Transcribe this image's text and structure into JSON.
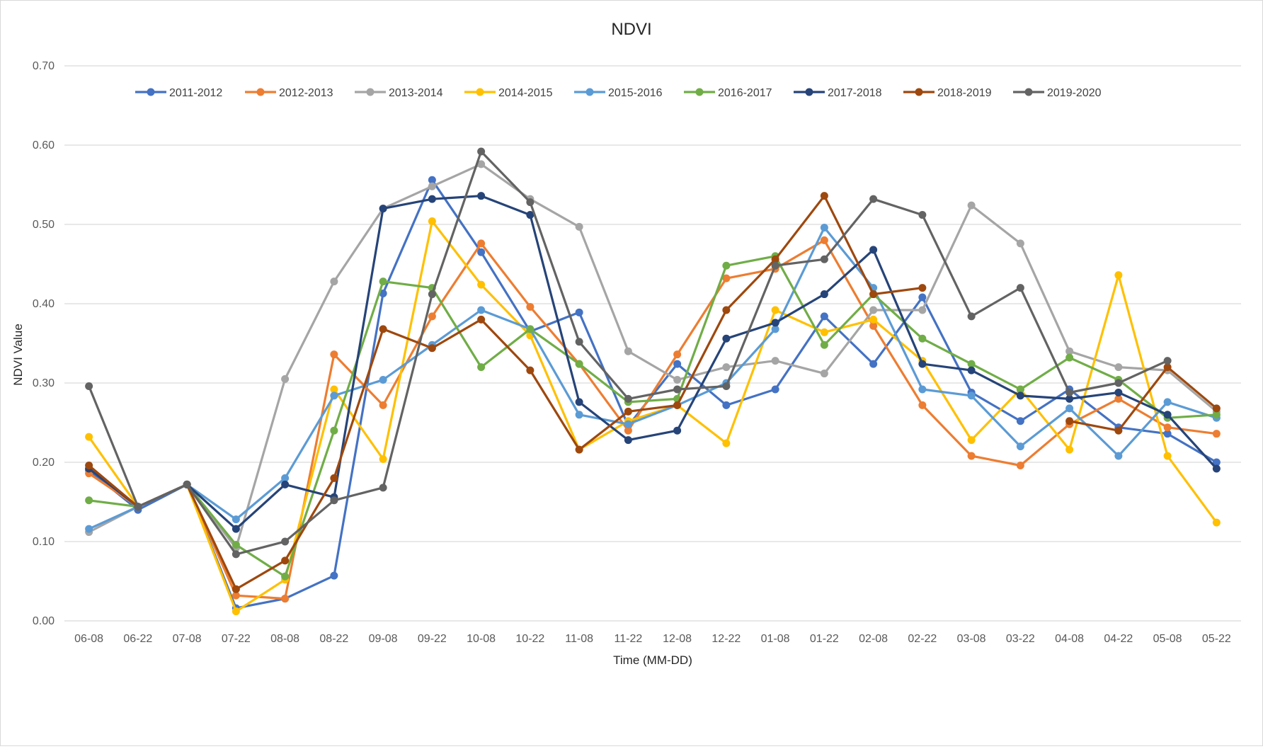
{
  "chart_data": {
    "type": "line",
    "title": "NDVI",
    "xlabel": "Time (MM-DD)",
    "ylabel": "NDVI Value",
    "ylim": [
      0,
      0.7
    ],
    "yticks": [
      "0.00",
      "0.10",
      "0.20",
      "0.30",
      "0.40",
      "0.50",
      "0.60",
      "0.70"
    ],
    "grid": true,
    "legend_position": "top",
    "categories": [
      "06-08",
      "06-22",
      "07-08",
      "07-22",
      "08-08",
      "08-22",
      "09-08",
      "09-22",
      "10-08",
      "10-22",
      "11-08",
      "11-22",
      "12-08",
      "12-22",
      "01-08",
      "01-22",
      "02-08",
      "02-22",
      "03-08",
      "03-22",
      "04-08",
      "04-22",
      "05-08",
      "05-22"
    ],
    "series": [
      {
        "name": "2011-2012",
        "color": "#4472C4",
        "values": [
          0.19,
          0.14,
          0.172,
          0.016,
          0.028,
          0.057,
          0.413,
          0.556,
          0.465,
          0.365,
          0.389,
          0.246,
          0.324,
          0.272,
          0.292,
          0.384,
          0.324,
          0.408,
          0.288,
          0.252,
          0.292,
          0.244,
          0.236,
          0.2
        ]
      },
      {
        "name": "2012-2013",
        "color": "#ED7D31",
        "values": [
          0.186,
          0.144,
          0.172,
          0.032,
          0.028,
          0.336,
          0.272,
          0.384,
          0.476,
          0.396,
          0.324,
          0.24,
          0.336,
          0.432,
          0.444,
          0.48,
          0.372,
          0.272,
          0.208,
          0.196,
          0.248,
          0.28,
          0.244,
          0.236
        ]
      },
      {
        "name": "2013-2014",
        "color": "#A5A5A5",
        "values": [
          0.112,
          0.144,
          0.172,
          0.092,
          0.305,
          0.428,
          0.52,
          0.548,
          0.576,
          0.532,
          0.497,
          0.34,
          0.304,
          0.32,
          0.328,
          0.312,
          0.392,
          0.392,
          0.524,
          0.476,
          0.34,
          0.32,
          0.316,
          0.264
        ]
      },
      {
        "name": "2014-2015",
        "color": "#FFC000",
        "values": [
          0.232,
          0.144,
          0.172,
          0.012,
          0.052,
          0.292,
          0.204,
          0.504,
          0.424,
          0.36,
          0.216,
          0.252,
          0.272,
          0.224,
          0.392,
          0.364,
          0.38,
          0.328,
          0.228,
          0.292,
          0.216,
          0.436,
          0.208,
          0.124
        ]
      },
      {
        "name": "2015-2016",
        "color": "#5B9BD5",
        "values": [
          0.116,
          0.144,
          0.172,
          0.128,
          0.18,
          0.284,
          0.304,
          0.348,
          0.392,
          0.368,
          0.26,
          0.248,
          0.272,
          0.3,
          0.368,
          0.496,
          0.42,
          0.292,
          0.284,
          0.22,
          0.268,
          0.208,
          0.276,
          0.256
        ]
      },
      {
        "name": "2016-2017",
        "color": "#70AD47",
        "values": [
          0.152,
          0.144,
          0.172,
          0.096,
          0.056,
          0.24,
          0.428,
          0.42,
          0.32,
          0.368,
          0.324,
          0.276,
          0.28,
          0.448,
          0.46,
          0.348,
          0.412,
          0.356,
          0.324,
          0.292,
          0.332,
          0.304,
          0.256,
          0.26
        ]
      },
      {
        "name": "2017-2018",
        "color": "#264478",
        "values": [
          0.192,
          0.144,
          0.172,
          0.116,
          0.172,
          0.156,
          0.52,
          0.532,
          0.536,
          0.512,
          0.276,
          0.228,
          0.24,
          0.356,
          0.376,
          0.412,
          0.468,
          0.324,
          0.316,
          0.284,
          0.28,
          0.288,
          0.26,
          0.192
        ]
      },
      {
        "name": "2018-2019",
        "color": "#9E480E",
        "values": [
          0.196,
          0.144,
          0.172,
          0.04,
          0.076,
          0.18,
          0.368,
          0.344,
          0.38,
          0.316,
          0.216,
          0.264,
          0.272,
          0.392,
          0.456,
          0.536,
          0.412,
          0.42,
          null,
          null,
          0.252,
          0.24,
          0.32,
          0.268
        ]
      },
      {
        "name": "2019-2020",
        "color": "#636363",
        "values": [
          0.296,
          0.144,
          0.172,
          0.084,
          0.1,
          0.152,
          0.168,
          0.412,
          0.592,
          0.528,
          0.352,
          0.28,
          0.292,
          0.296,
          0.448,
          0.456,
          0.532,
          0.512,
          0.384,
          0.42,
          0.288,
          0.3,
          0.328,
          null
        ]
      }
    ]
  }
}
